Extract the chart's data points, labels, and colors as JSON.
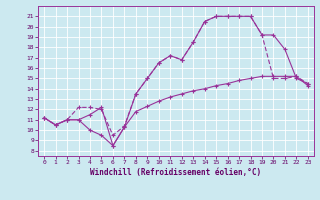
{
  "title": "",
  "xlabel": "Windchill (Refroidissement éolien,°C)",
  "ylabel": "",
  "bg_color": "#cce9f0",
  "line_color": "#993399",
  "xlim": [
    -0.5,
    23.5
  ],
  "ylim": [
    7.5,
    22
  ],
  "xticks": [
    0,
    1,
    2,
    3,
    4,
    5,
    6,
    7,
    8,
    9,
    10,
    11,
    12,
    13,
    14,
    15,
    16,
    17,
    18,
    19,
    20,
    21,
    22,
    23
  ],
  "yticks": [
    8,
    9,
    10,
    11,
    12,
    13,
    14,
    15,
    16,
    17,
    18,
    19,
    20,
    21
  ],
  "line1_x": [
    0,
    1,
    2,
    3,
    4,
    5,
    6,
    7,
    8,
    9,
    10,
    11,
    12,
    13,
    14,
    15,
    16,
    17,
    18,
    19,
    20,
    21,
    22,
    23
  ],
  "line1_y": [
    11.2,
    10.5,
    11.0,
    11.0,
    11.5,
    12.2,
    8.5,
    10.3,
    11.8,
    12.3,
    12.8,
    13.2,
    13.5,
    13.8,
    14.0,
    14.3,
    14.5,
    14.8,
    15.0,
    15.2,
    15.2,
    15.2,
    15.2,
    14.3
  ],
  "line2_x": [
    0,
    1,
    2,
    3,
    4,
    5,
    6,
    7,
    8,
    9,
    10,
    11,
    12,
    13,
    14,
    15,
    16,
    17,
    18,
    19,
    20,
    21,
    22,
    23
  ],
  "line2_y": [
    11.2,
    10.5,
    11.0,
    11.0,
    10.0,
    9.5,
    8.5,
    10.3,
    13.5,
    15.0,
    16.5,
    17.2,
    16.8,
    18.5,
    20.5,
    21.0,
    21.0,
    21.0,
    21.0,
    19.2,
    19.2,
    17.8,
    15.0,
    14.5
  ],
  "line3_x": [
    0,
    1,
    2,
    3,
    4,
    5,
    6,
    7,
    8,
    9,
    10,
    11,
    12,
    13,
    14,
    15,
    16,
    17,
    18,
    19,
    20,
    21,
    22,
    23
  ],
  "line3_y": [
    11.2,
    10.5,
    11.0,
    12.2,
    12.2,
    12.0,
    9.5,
    10.4,
    13.5,
    15.0,
    16.5,
    17.2,
    16.8,
    18.5,
    20.5,
    21.0,
    21.0,
    21.0,
    21.0,
    19.2,
    15.0,
    15.0,
    15.2,
    14.5
  ]
}
